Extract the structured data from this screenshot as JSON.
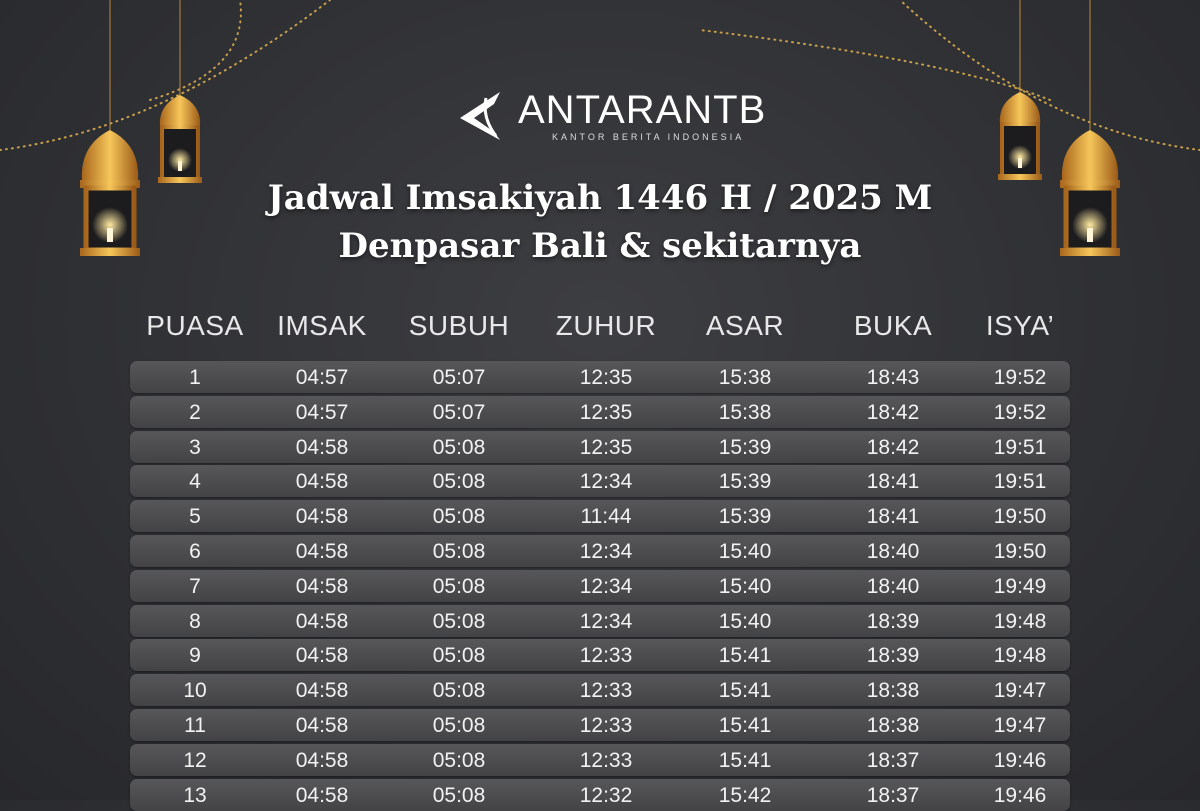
{
  "logo": {
    "name": "ANTARANTB",
    "tagline": "KANTOR BERITA INDONESIA"
  },
  "title": {
    "line1": "Jadwal Imsakiyah 1446 H / 2025 M",
    "line2": "Denpasar Bali & sekitarnya"
  },
  "colors": {
    "background": "#2f3034",
    "row": "#4a4a4c",
    "gold": "#e8a93a"
  },
  "table": {
    "headers": [
      "PUASA",
      "IMSAK",
      "SUBUH",
      "ZUHUR",
      "ASAR",
      "BUKA",
      "ISYA’"
    ],
    "rows": [
      [
        "1",
        "04:57",
        "05:07",
        "12:35",
        "15:38",
        "18:43",
        "19:52"
      ],
      [
        "2",
        "04:57",
        "05:07",
        "12:35",
        "15:38",
        "18:42",
        "19:52"
      ],
      [
        "3",
        "04:58",
        "05:08",
        "12:35",
        "15:39",
        "18:42",
        "19:51"
      ],
      [
        "4",
        "04:58",
        "05:08",
        "12:34",
        "15:39",
        "18:41",
        "19:51"
      ],
      [
        "5",
        "04:58",
        "05:08",
        "11:44",
        "15:39",
        "18:41",
        "19:50"
      ],
      [
        "6",
        "04:58",
        "05:08",
        "12:34",
        "15:40",
        "18:40",
        "19:50"
      ],
      [
        "7",
        "04:58",
        "05:08",
        "12:34",
        "15:40",
        "18:40",
        "19:49"
      ],
      [
        "8",
        "04:58",
        "05:08",
        "12:34",
        "15:40",
        "18:39",
        "19:48"
      ],
      [
        "9",
        "04:58",
        "05:08",
        "12:33",
        "15:41",
        "18:39",
        "19:48"
      ],
      [
        "10",
        "04:58",
        "05:08",
        "12:33",
        "15:41",
        "18:38",
        "19:47"
      ],
      [
        "11",
        "04:58",
        "05:08",
        "12:33",
        "15:41",
        "18:38",
        "19:47"
      ],
      [
        "12",
        "04:58",
        "05:08",
        "12:33",
        "15:41",
        "18:37",
        "19:46"
      ],
      [
        "13",
        "04:58",
        "05:08",
        "12:32",
        "15:42",
        "18:37",
        "19:46"
      ]
    ]
  }
}
